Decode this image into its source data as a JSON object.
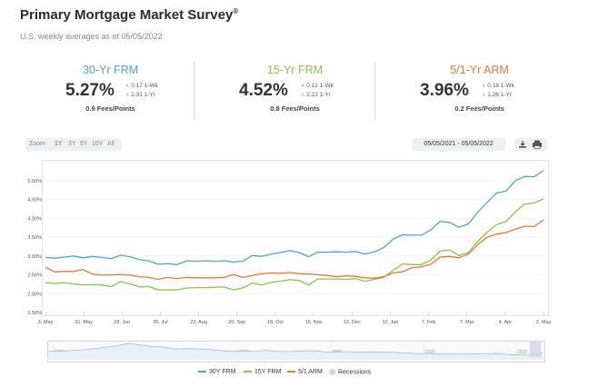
{
  "header": {
    "title": "Primary Mortgage Market Survey",
    "title_mark": "®",
    "subtitle": "U.S. weekly averages as of 05/05/2022"
  },
  "stats": [
    {
      "name": "30-Yr FRM",
      "rate": "5.27%",
      "change_1wk": "0.17 1-Wk",
      "change_1yr": "2.31 1-Yr",
      "fees": "0.9 Fees/Points",
      "color": "#4fa3dc"
    },
    {
      "name": "15-Yr FRM",
      "rate": "4.52%",
      "change_1wk": "0.12 1-Wk",
      "change_1yr": "2.22 1-Yr",
      "fees": "0.8 Fees/Points",
      "color": "#8bc34a"
    },
    {
      "name": "5/1-Yr ARM",
      "rate": "3.96%",
      "change_1wk": "0.18 1-Wk",
      "change_1yr": "1.26 1-Yr",
      "fees": "0.2 Fees/Points",
      "color": "#e8773a"
    }
  ],
  "toolbar": {
    "zoom_label": "Zoom",
    "zoom_options": [
      "1Y",
      "3Y",
      "5Y",
      "10Y",
      "All"
    ],
    "selected_zoom": "1Y",
    "date_range": "05/05/2021 - 05/05/2022",
    "download_icon": "download-icon",
    "print_icon": "print-icon"
  },
  "chart_data": {
    "type": "line",
    "ylim": [
      1.5,
      5.5
    ],
    "y_ticks": [
      "1.50%",
      "2.00%",
      "2.50%",
      "3.00%",
      "3.50%",
      "4.00%",
      "4.50%",
      "5.00%"
    ],
    "x_ticks": [
      "3. May",
      "31. May",
      "28. Jun",
      "26. Jul",
      "23. Aug",
      "20. Sep",
      "18. Oct",
      "15. Nov",
      "13. Dec",
      "10. Jan",
      "7. Feb",
      "7. Mar",
      "4. Apr",
      "2. May"
    ],
    "series": [
      {
        "name": "30Y FRM",
        "color": "#4fa3dc",
        "values": [
          2.96,
          2.94,
          2.97,
          3.0,
          2.95,
          2.99,
          2.96,
          2.93,
          3.02,
          2.98,
          2.9,
          2.87,
          2.78,
          2.8,
          2.77,
          2.87,
          2.86,
          2.87,
          2.86,
          2.87,
          2.84,
          2.86,
          3.01,
          2.99,
          3.05,
          3.09,
          3.14,
          3.09,
          2.98,
          3.1,
          3.1,
          3.11,
          3.1,
          3.12,
          3.05,
          3.11,
          3.22,
          3.45,
          3.56,
          3.55,
          3.55,
          3.69,
          3.92,
          3.89,
          3.76,
          3.85,
          4.16,
          4.42,
          4.67,
          4.72,
          5.0,
          5.11,
          5.1,
          5.27
        ]
      },
      {
        "name": "15Y FRM",
        "color": "#8bc34a",
        "values": [
          2.29,
          2.27,
          2.29,
          2.26,
          2.23,
          2.24,
          2.23,
          2.19,
          2.32,
          2.26,
          2.18,
          2.19,
          2.1,
          2.1,
          2.1,
          2.15,
          2.16,
          2.16,
          2.17,
          2.18,
          2.1,
          2.15,
          2.28,
          2.23,
          2.3,
          2.33,
          2.37,
          2.35,
          2.23,
          2.39,
          2.39,
          2.39,
          2.38,
          2.4,
          2.33,
          2.38,
          2.43,
          2.62,
          2.79,
          2.77,
          2.77,
          2.89,
          3.13,
          3.16,
          3.01,
          3.09,
          3.39,
          3.63,
          3.83,
          3.91,
          4.17,
          4.38,
          4.4,
          4.52
        ]
      },
      {
        "name": "5/1 ARM",
        "color": "#e8773a",
        "values": [
          2.7,
          2.58,
          2.59,
          2.59,
          2.64,
          2.52,
          2.49,
          2.5,
          2.51,
          2.49,
          2.45,
          2.43,
          2.38,
          2.43,
          2.4,
          2.43,
          2.42,
          2.42,
          2.42,
          2.43,
          2.51,
          2.43,
          2.48,
          2.53,
          2.55,
          2.54,
          2.56,
          2.53,
          2.52,
          2.5,
          2.48,
          2.45,
          2.47,
          2.46,
          2.42,
          2.41,
          2.45,
          2.55,
          2.58,
          2.69,
          2.71,
          2.78,
          2.97,
          2.99,
          2.95,
          3.05,
          3.3,
          3.5,
          3.58,
          3.62,
          3.71,
          3.79,
          3.78,
          3.96
        ]
      }
    ]
  },
  "navigator": {
    "labels": [
      "1970",
      "1980",
      "1990",
      "2000",
      "2010",
      "2020"
    ]
  },
  "legend": [
    {
      "label": "30Y FRM",
      "color": "#4fa3dc"
    },
    {
      "label": "15Y FRM",
      "color": "#8bc34a"
    },
    {
      "label": "5/1 ARM",
      "color": "#e8773a"
    },
    {
      "label": "Recessions",
      "color": "#d9d9d9"
    }
  ]
}
